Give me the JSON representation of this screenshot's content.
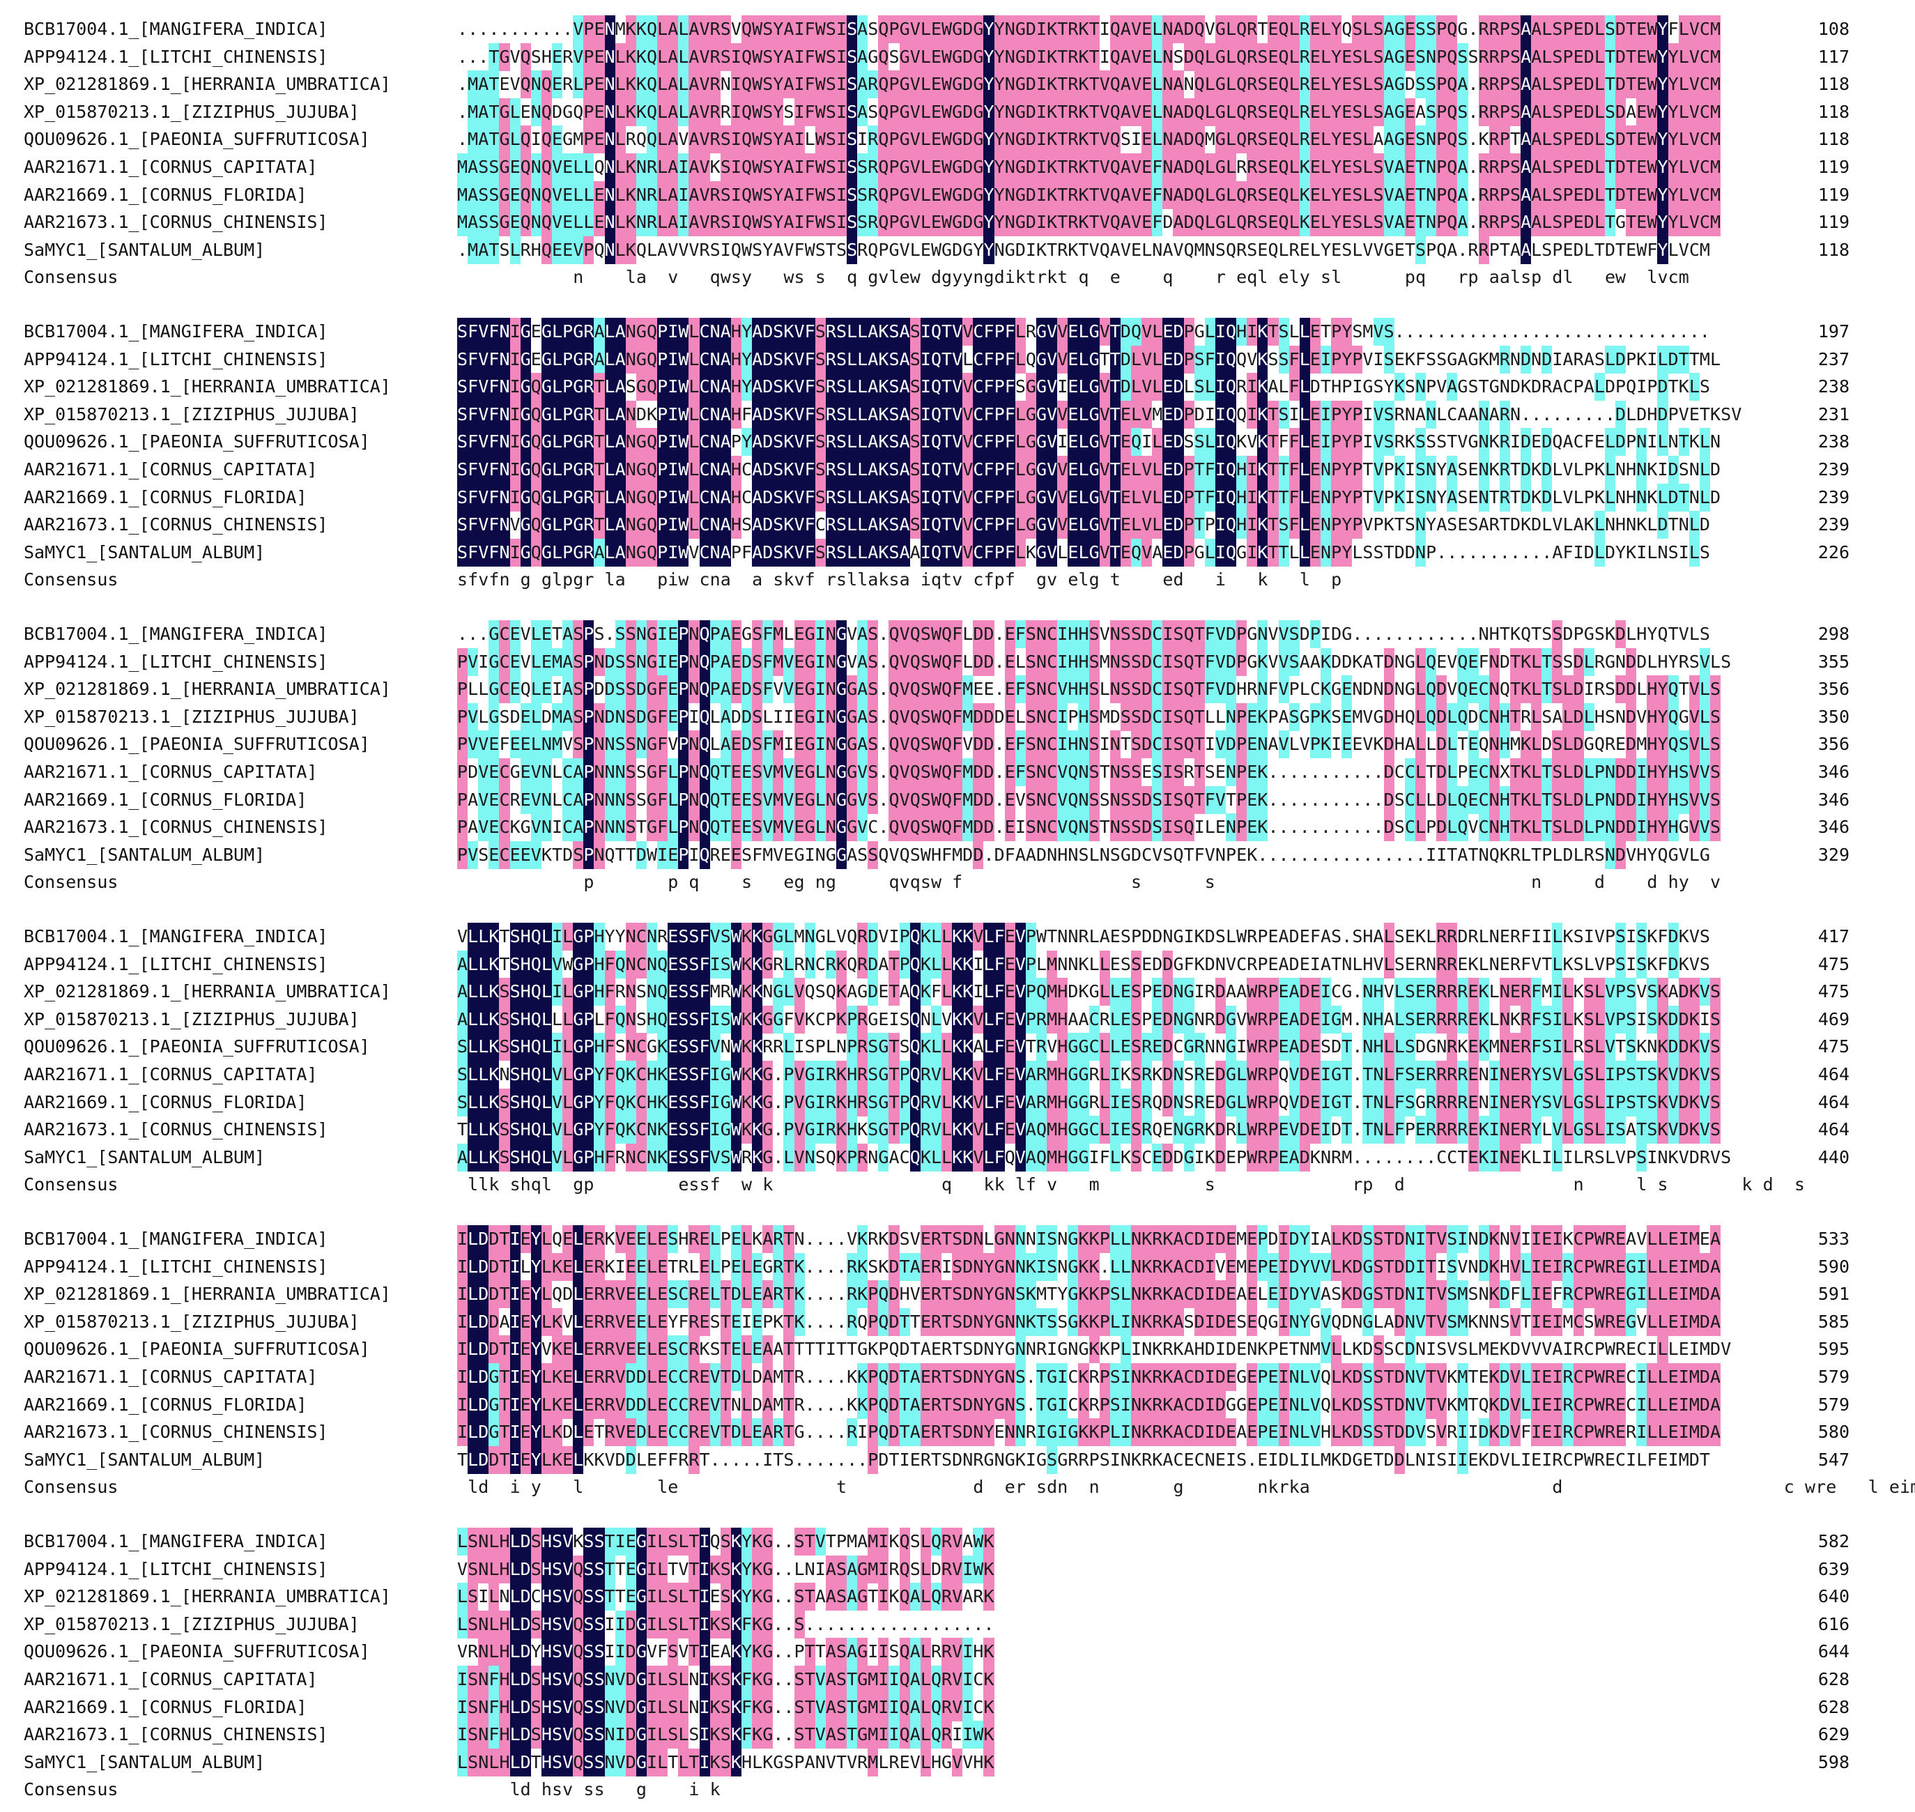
{
  "palette": {
    "identical": "#0b0a46",
    "high_similarity": "#f287bd",
    "low_similarity": "#7ef6f2",
    "background": "#ffffff",
    "text": "#111111"
  },
  "consensus_label": "Consensus",
  "blocks": [
    {
      "rows": [
        {
          "name": "BCB17004.1_[MANGIFERA_INDICA]",
          "seq": "...........VPENMKKQLALAVRSVQWSYAIFWSISASQPGVLEWGDGYYNGDIKTRKTIQAVELNADQVGLQRTEQLRELYQSLSAGESSPQG.RRPSAALSPEDLSDTEWYFLVCM",
          "end": "108"
        },
        {
          "name": "APP94124.1_[LITCHI_CHINENSIS]",
          "seq": "...TGVQSHERVPENLKKQLALAVRSIQWSYAIFWSISAGQSGVLEWGDGYYNGDIKTRKTIQAVELNSDQLGLQRSEQLRELYESLSAGESNPQSSRRPSAALSPEDLTDTEWYYLVCM",
          "end": "117"
        },
        {
          "name": "XP_021281869.1_[HERRANIA_UMBRATICA]",
          "seq": ".MATEVQNQERLPENLKKQLALAVRNIQWSYAIFWSISARQPGVLEWGDGYYNGDIKTRKTVQAVELNANQLGLQRSEQLRELYESLSAGDSSPQA.RRPSAALSPEDLTDTEWYYLVCM",
          "end": "118"
        },
        {
          "name": "XP_015870213.1_[ZIZIPHUS_JUJUBA]",
          "seq": ".MATGLENQDGQPENLKKQLALAVRRIQWSYSIFWSISASQPGVLEWGDGYYNGDIKTRKTVQAVELNADQLGLQRSEQLRELYESLSAGEASPQS.RRPSAALSPEDLSDAEWYYLVCM",
          "end": "118"
        },
        {
          "name": "QOU09626.1_[PAEONIA_SUFFRUTICOSA]",
          "seq": ".MATGLQIQEGMPENLRQQLAVAVRSIQWSYAILWSISIRQPGVLEWGDGYYNGDIKTRKTVQSIELNADQMGLQRSEQLRELYESLAAGESNPQS.KRPTAALSPEDLSDTEWYYLVCM",
          "end": "118"
        },
        {
          "name": "AAR21671.1_[CORNUS_CAPITATA]",
          "seq": "MASSGEQNQVELLQNLKNRLAIAVKSIQWSYAIFWSISSRQPGVLEWGDGYYNGDIKTRKTVQAVEFNADQLGLRRSEQLKELYESLSVAETNPQA.RRPSAALSPEDLTDTEWYYLVCM",
          "end": "119"
        },
        {
          "name": "AAR21669.1_[CORNUS_FLORIDA]",
          "seq": "MASSGEQNQVELLENLKNRLAIAVRSIQWSYAIFWSISSRQPGVLEWGDGYYNGDIKTRKTVQAVEFNADQLGLQRSEQLKELYESLSVAETNPQA.RRPSAALSPEDLTDTEWYYLVCM",
          "end": "119"
        },
        {
          "name": "AAR21673.1_[CORNUS_CHINENSIS]",
          "seq": "MASSGEQNQVELLENLKNRLAIAVRSIQWSYAIFWSISSRQPGVLEWGDGYYNGDIKTRKTVQAVEFDADQLGLQRSEQLKELYESLSVAETNPQA.RRPSAALSPEDLTGTEWYYLVCM",
          "end": "119"
        },
        {
          "name": "SaMYC1_[SANTALUM_ALBUM]",
          "seq": ".MATSLRHQEEVPQNLKQLAVVVRSIQWSYAVFWSTSSRQPGVLEWGDGYYNGDIKTRKTVQAVELNAVQMNSQRSEQLRELYESLVVGETSPQA.RRPTAALSPEDLTDTEWFYLVCM",
          "end": "118"
        }
      ],
      "consensus": "           n    la  v   qwsy   ws s  q gvlew dgyyngdiktrkt q  e    q    r eql ely sl      pq   rp aalsp dl   ew  lvcm"
    },
    {
      "rows": [
        {
          "name": "BCB17004.1_[MANGIFERA_INDICA]",
          "seq": "SFVFNIGEGLPGRALANGQPIWLCNAHYADSKVFSRSLLAKSASIQTVVCFPFLRGVVELGVTDQVLEDPGLIQHIKTSLLETPYSMVS..............................",
          "end": "197"
        },
        {
          "name": "APP94124.1_[LITCHI_CHINENSIS]",
          "seq": "SFVFNIGEGLPGRALANGQPIWLCNAHYADSKVFSRSLLAKSASIQTVLCFPFLQGVVELGTTDLVLEDPSFIQQVKSSFLEIPYPVISEKFSSGAGKMRNDNDIARASLDPKILDTTML",
          "end": "237"
        },
        {
          "name": "XP_021281869.1_[HERRANIA_UMBRATICA]",
          "seq": "SFVFNIGQGLPGRTLASGQPIWLCNAHYADSKVFSRSLLAKSASIQTVVCFPFSGGVIELGVTDLVLEDLSLIQRIKALFLDTHPIGSYKSNPVAGSTGNDKDRACPALDPQIPDTKLS",
          "end": "238"
        },
        {
          "name": "XP_015870213.1_[ZIZIPHUS_JUJUBA]",
          "seq": "SFVFNIGQGLPGRTLANDKPIWLCNAHFADSKVFSRSLLAKSASIQTVVCFPFLGGVVELGVTELVMEDPDIIQQIKTSILEIPYPIVSRNANLCAANARN.........DLDHDPVETKSV",
          "end": "231"
        },
        {
          "name": "QOU09626.1_[PAEONIA_SUFFRUTICOSA]",
          "seq": "SFVFNIGQGLPGRTLANGQPIWLCNAPYADSKVFSRSLLAKSASIQTVVCFPFLGGVIELGVTEQILEDSSLIQKVKTFFLEIPYPIVSRKSSSTVGNKRIDEDQACFELDPNILNTKLN",
          "end": "238"
        },
        {
          "name": "AAR21671.1_[CORNUS_CAPITATA]",
          "seq": "SFVFNIGQGLPGRTLANGQPIWLCNAHCADSKVFSRSLLAKSASIQTVVCFPFLGGVVELGVTELVLEDPTFIQHIKTTFLENPYPTVPKISNYASENKRTDKDLVLPKLNHNKIDSNLD",
          "end": "239"
        },
        {
          "name": "AAR21669.1_[CORNUS_FLORIDA]",
          "seq": "SFVFNIGQGLPGRTLANGQPIWLCNAHCADSKVFSRSLLAKSASIQTVVCFPFLGGVVELGVTELVLEDPTFIQHIKTTFLENPYPTVPKISNYASENTRTDKDLVLPKLNHNKLDTNLD",
          "end": "239"
        },
        {
          "name": "AAR21673.1_[CORNUS_CHINENSIS]",
          "seq": "SFVFNVGQGLPGRTLANGQPIWLCNAHSADSKVFCRSLLAKSASIQTVVCFPFLGGVVELGVTELVLEDPTPIQHIKTSFLENPYPVPKTSNYASESARTDKDLVLAKLNHNKLDTNLD",
          "end": "239"
        },
        {
          "name": "SaMYC1_[SANTALUM_ALBUM]",
          "seq": "SFVFNIGQGLPGRALANGQPIWVCNAPFADSKVFSRSLLAKSAAIQTVVCFPFLKGVLELGVTEQVAEDPGLIQGIKTTLLENPYLSSTDDNP...........AFIDLDYKILNSILS",
          "end": "226"
        }
      ],
      "consensus": "sfvfn g glpgr la   piw cna  a skvf rsllaksa iqtv cfpf  gv elg t    ed   i   k   l  p"
    },
    {
      "rows": [
        {
          "name": "BCB17004.1_[MANGIFERA_INDICA]",
          "seq": "...GCEVLETASPS.SSNGIEPNQPAEGSFMLEGINGVAS.QVQSWQFLDD.EFSNCIHHSVNSSDCISQTFVDPGNVVSDPIDG............NHTKQTSSDPGSKDLHYQTVLS",
          "end": "298"
        },
        {
          "name": "APP94124.1_[LITCHI_CHINENSIS]",
          "seq": "PVIGCEVLEMASPNDSSNGIEPNQPAEDSFMVEGINGVAS.QVQSWQFLDD.ELSNCIHHSMNSSDCISQTFVDPGKVVSAAKDDKATDNGLQEVQEFNDTKLTSSDLRGNDDLHYRSVLS",
          "end": "355"
        },
        {
          "name": "XP_021281869.1_[HERRANIA_UMBRATICA]",
          "seq": "PLLGCEQLEIASPDDSSDGFEPNQPAEDSFVVEGINGGAS.QVQSWQFMEE.EFSNCVHHSLNSSDCISQTFVDHRNFVPLCKGENDNDNGLQDVQECNQTKLTSLDIRSDDLHYQTVLS",
          "end": "356"
        },
        {
          "name": "XP_015870213.1_[ZIZIPHUS_JUJUBA]",
          "seq": "PVLGSDELDMASPNDNSDGFEPIQLADDSLIIEGINGGAS.QVQSWQFMDDDELSNCIPHSMDSSDCISQTLLNPEKPASGPKSEMVGDHQLQDLQDCNHTRLSALDLHSNDVHYQGVLS",
          "end": "350"
        },
        {
          "name": "QOU09626.1_[PAEONIA_SUFFRUTICOSA]",
          "seq": "PVVEFEELNMVSPNNSSNGFVPNQLAEDSFMIEGINGGAS.QVQSWQFVDD.EFSNCIHNSINTSDCISQTIVDPENAVLVPKIEEVKDHALLDLTEQNHMKLDSLDGQREDMHYQSVLS",
          "end": "356"
        },
        {
          "name": "AAR21671.1_[CORNUS_CAPITATA]",
          "seq": "PDVECGEVNLCAPNNNSSGFLPNQQTEESVMVEGLNGGVS.QVQSWQFMDD.EFSNCVQNSTNSSESISRTSENPEK...........DCCLTDLPECNXTKLTSLDLPNDDIHYHSVVS",
          "end": "346"
        },
        {
          "name": "AAR21669.1_[CORNUS_FLORIDA]",
          "seq": "PAVECREVNLCAPNNNSSGFLPNQQTEESVMVEGLNGGVS.QVQSWQFMDD.EVSNCVQNSSNSSDSISQTFVTPEK...........DSCLLDLQECNHTKLTSLDLPNDDIHYHSVVS",
          "end": "346"
        },
        {
          "name": "AAR21673.1_[CORNUS_CHINENSIS]",
          "seq": "PAVECKGVNICAPNNNSTGFLPNQQTEESVMVEGLNGGVC.QVQSWQFMDD.EISNCVQNSTNSSDSISQILENPEK...........DSCLPDLQVCNHTKLTSLDLPNDDIHYHGVVS",
          "end": "346"
        },
        {
          "name": "SaMYC1_[SANTALUM_ALBUM]",
          "seq": "PVSECEEVKTDSPNQTTDWIEPIQREESFMVEGINGGASSQVQSWHFMDD.DFAADNHNSLNSGDCVSQTFVNPEK................IITATNQKRLTPLDLRSNDVHYQGVLG",
          "end": "329"
        }
      ],
      "consensus": "            p       p q    s   eg ng     qvqsw f                s      s                              n     d    d hy  v"
    },
    {
      "rows": [
        {
          "name": "BCB17004.1_[MANGIFERA_INDICA]",
          "seq": "VLLKTSHQLILGPHYYNCNRESSFVSWKKGGLMNGLVQRDVIPQKLLKKVLFEVPWTNNRLAESPDDNGIKDSLWRPEADEFAS.SHALSEKLRRDRLNERFIILKSIVPSISKFDKVS",
          "end": "417"
        },
        {
          "name": "APP94124.1_[LITCHI_CHINENSIS]",
          "seq": "ALLKTSHQLVWGPHFQNCNQESSFISWKKGRLRNCRKQRDATPQKLLKKILFEVPLMNNKLLESSEDDGFKDNVCRPEADEIATNLHVLSERNRREKLNERFVTLKSLVPSISKFDKVS",
          "end": "475"
        },
        {
          "name": "XP_021281869.1_[HERRANIA_UMBRATICA]",
          "seq": "ALLKSSHQLILGPHFRNSNQESSFMRWKKNGLVQSQKAGDETAQKFLKKILFEVPQMHDKGLLESPEDNGIRDAAWRPEADEICG.NHVLSERRRREKLNERFMILKSLVPSVSKADKVS",
          "end": "475"
        },
        {
          "name": "XP_015870213.1_[ZIZIPHUS_JUJUBA]",
          "seq": "ALLKSSHQLLLGPLFQNSHQESSFISWKKGGFVKCPKPRGEISQNLVKKVLFEVPRMHAACRLESPEDNGNRDGVWRPEADEIGM.NHALSERRRREKLNKRFSILKSLVPSISKDDKIS",
          "end": "469"
        },
        {
          "name": "QOU09626.1_[PAEONIA_SUFFRUTICOSA]",
          "seq": "SLLKSSHQLILGPHFSNCGKESSFVNWKKRRLISPLNPRSGTSQKLLKKALFEVTRVHGGCLLESREDCGRNNGIWRPEADESDT.NHLLSDGNRKEKMNERFSILRSLVTSKNKDDKVS",
          "end": "475"
        },
        {
          "name": "AAR21671.1_[CORNUS_CAPITATA]",
          "seq": "SLLKNSHQLVLGPYFQKCHKESSFIGWKKG.PVGIRKHRSGTPQRVLKKVLFEVARMHGGRLIKSRKDNSREDGLWRPQVDEIGT.TNLFSERRRRENINERYSVLGSLIPSTSKVDKVS",
          "end": "464"
        },
        {
          "name": "AAR21669.1_[CORNUS_FLORIDA]",
          "seq": "SLLKSSHQLVLGPYFQKCHKESSFIGWKKG.PVGIRKHRSGTPQRVLKKVLFEVARMHGGRLIESRQDNSREDGLWRPQVDEIGT.TNLFSGRRRRENINERYSVLGSLIPSTSKVDKVS",
          "end": "464"
        },
        {
          "name": "AAR21673.1_[CORNUS_CHINENSIS]",
          "seq": "TLLKSSHQLVLGPYFQKCNKESSFIGWKKG.PVGIRKHKSGTPQRVLKKVLFEVAQMHGGCLIESRQENGRKDRLWRPEVDEIDT.TNLFPERRRREKINERYLVLGSLISATSKVDKVS",
          "end": "464"
        },
        {
          "name": "SaMYC1_[SANTALUM_ALBUM]",
          "seq": "ALLKSSHQLVLGPHFRNCNKESSFVSWRKG.LVNSQKPRNGACQKLLKKVLFQVAQMHGGIFLKSCEDDGIKDEPWRPEADKNRM........CCTEKINEKLILILRSLVPSINKVDRVS",
          "end": "440"
        }
      ],
      "consensus": " llk shql  gp        essf  w k                q   kk lf v   m          s             rp  d                n     l s       k d  s"
    },
    {
      "rows": [
        {
          "name": "BCB17004.1_[MANGIFERA_INDICA]",
          "seq": "ILDDTIEYLQELERKVEELESHRELPELKARTN....VKRKDSVERTSDNLGNNNISNGKKPLLNKRKACDIDEMEPDIDYIALKDSSTDNITVSINDKNVIIEIKCPWREAVLLEIMEA",
          "end": "533"
        },
        {
          "name": "APP94124.1_[LITCHI_CHINENSIS]",
          "seq": "ILDDTILYLKELERKIEELETRLELPELEGRTK....RKSKDTAERISDNYGNNKISNGKK.LLNKRKACDIVEMEPEIDYVVLKDGSTDDITISVNDKHVLIEIRCPWREGILLEIMDA",
          "end": "590"
        },
        {
          "name": "XP_021281869.1_[HERRANIA_UMBRATICA]",
          "seq": "ILDDTIEYLQDLERRVEELESCRELTDLEARTK....RKPQDHVERTSDNYGNSKMTYGKKPSLNKRKACDIDEAELEIDYVASKDGSTDNITVSMSNKDFLIEFRCPWREGILLEIMDA",
          "end": "591"
        },
        {
          "name": "XP_015870213.1_[ZIZIPHUS_JUJUBA]",
          "seq": "ILDDAIEYLKVLERRVEELEYFRESTEIEPKTK....RQPQDTTERTSDNYGNNKTSSGKKPLINKRKASDIDESEQGINYGVQDNGLADNVTVSMKNNSVTIEIMCSWREGVLLEIMDA",
          "end": "585"
        },
        {
          "name": "QOU09626.1_[PAEONIA_SUFFRUTICOSA]",
          "seq": "ILDDTIEYVKELERRVEELESCRKSTELEAATTTTITTGKPQDTAERTSDNYGNNRIGNGKKPLINKRKAHDIDENKPETNMVLLKDSSCDNISVSLMEKDVVVAIRCPWRECILLEIMDV",
          "end": "595"
        },
        {
          "name": "AAR21671.1_[CORNUS_CAPITATA]",
          "seq": "ILDGTIEYLKELERRVDDLECCREVTDLDAMTR....KKPQDTAERTSDNYGNS.TGICKRPSINKRKACDIDEGEPEINLVQLKDSSTDNVTVKMTEKDVLIEIRCPWRECILLEIMDA",
          "end": "579"
        },
        {
          "name": "AAR21669.1_[CORNUS_FLORIDA]",
          "seq": "ILDGTIEYLKELERRVDDLECCREVTNLDAMTR....KKPQDTAERTSDNYGNS.TGICKRPSINKRKACDIDGGEPEINLVQLKDSSTDNVTVKMTQKDVLIEIRCPWRECILLEIMDA",
          "end": "579"
        },
        {
          "name": "AAR21673.1_[CORNUS_CHINENSIS]",
          "seq": "ILDGTIEYLKDLETRVEDLECCREVTDLEARTG....RIPQDTAERTSDNYENNRIGIGKKPLINKRKACDIDEAEPEINLVHLKDSSTDDVSVRIIDKDVFIEIRCPWRERILLEIMDA",
          "end": "580"
        },
        {
          "name": "SaMYC1_[SANTALUM_ALBUM]",
          "seq": "TLDDTIEYLKELKKVDDLEFFRRT.....ITS.......PDTIERTSDNRGNGKIGSGRRPSINKRKACECNEIS.EIDLILMKDGETDDLNISIIEKDVLIEIRCPWRECILFEIMDT",
          "end": "547"
        }
      ],
      "consensus": " ld  i y   l       le               t            d  er sdn  n       g       nkrka                       d                     c wre   l eim"
    },
    {
      "rows": [
        {
          "name": "BCB17004.1_[MANGIFERA_INDICA]",
          "seq": "LSNLHLDSHSVKSSTIEGILSLTIQSKYKG..STVTPMAMIKQSLQRVAWK",
          "end": "582"
        },
        {
          "name": "APP94124.1_[LITCHI_CHINENSIS]",
          "seq": "VSNLHLDSHSVQSSTTEGILTVTIKSKYKG..LNIASAGMIRQSLDRVIWK",
          "end": "639"
        },
        {
          "name": "XP_021281869.1_[HERRANIA_UMBRATICA]",
          "seq": "LSILNLDCHSVQSSTTEGILSLTIESKYKG..STAASAGTIKQALQRVARK",
          "end": "640"
        },
        {
          "name": "XP_015870213.1_[ZIZIPHUS_JUJUBA]",
          "seq": "LSNLHLDSHSVQSSIIDGILSLTIKSKFKG..S..................",
          "end": "616"
        },
        {
          "name": "QOU09626.1_[PAEONIA_SUFFRUTICOSA]",
          "seq": "VRNLHLDYHSVQSSIIDGVFSVTIEAKYKG..PTTASAGIISQALRRVIHK",
          "end": "644"
        },
        {
          "name": "AAR21671.1_[CORNUS_CAPITATA]",
          "seq": "ISNFHLDSHSVQSSNVDGILSLNIKSKFKG..STVASTGMIIQALQRVICK",
          "end": "628"
        },
        {
          "name": "AAR21669.1_[CORNUS_FLORIDA]",
          "seq": "ISNFHLDSHSVQSSNVDGILSLNIKSKFKG..STVASTGMIIQALQRVICK",
          "end": "628"
        },
        {
          "name": "AAR21673.1_[CORNUS_CHINENSIS]",
          "seq": "ISNFHLDSHSVQSSNIDGILSLSIKSKFKG..STVASTGMIIQALQRIIWK",
          "end": "629"
        },
        {
          "name": "SaMYC1_[SANTALUM_ALBUM]",
          "seq": "LSNLHLDTHSVQSSNVDGILTLTIKSKHLKGSPANVTVRMLREVLHGVVHK",
          "end": "598"
        }
      ],
      "consensus": "     ld hsv ss   g    i k"
    }
  ]
}
